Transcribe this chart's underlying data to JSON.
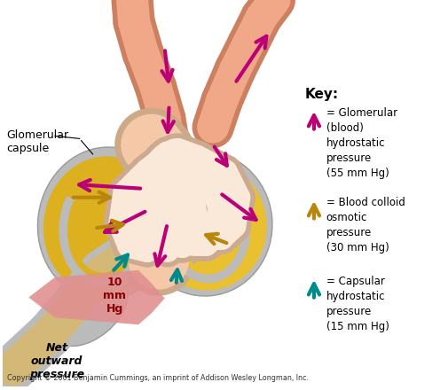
{
  "background_color": "#ffffff",
  "key_title": "Key:",
  "key_items": [
    {
      "color": "#BB0077",
      "label": "= Glomerular\n(blood)\nhydrostatic\npressure\n(55 mm Hg)"
    },
    {
      "color": "#B8860B",
      "label": "= Blood colloid\nosmotic\npressure\n(30 mm Hg)"
    },
    {
      "color": "#008B8B",
      "label": "= Capsular\nhydrostatic\npressure\n(15 mm Hg)"
    }
  ],
  "glomerular_capsule_label": "Glomerular\ncapsule",
  "pressure_label": "10\nmm\nHg",
  "net_outward_label": "Net\noutward\npressure",
  "copyright": "Copyright © 2001 Benjamin Cummings, an imprint of Addison Wesley Longman, Inc.",
  "magenta": "#BB0077",
  "gold": "#B8860B",
  "teal": "#008B8B",
  "capsule_gray": "#BBBBBB",
  "capsule_yellow": "#DDB020",
  "capsule_yellow2": "#E8C030",
  "vessel_fill": "#F0A888",
  "vessel_border": "#CC8060",
  "glom_fill": "#F5C8A8",
  "glom_border": "#CCAA88",
  "loop_fill": "#FAE8D8",
  "loop_border": "#CCAA90",
  "net_fill": "#E09090",
  "tubule_gray": "#AAAAAA",
  "tubule_yellow": "#D4B878"
}
